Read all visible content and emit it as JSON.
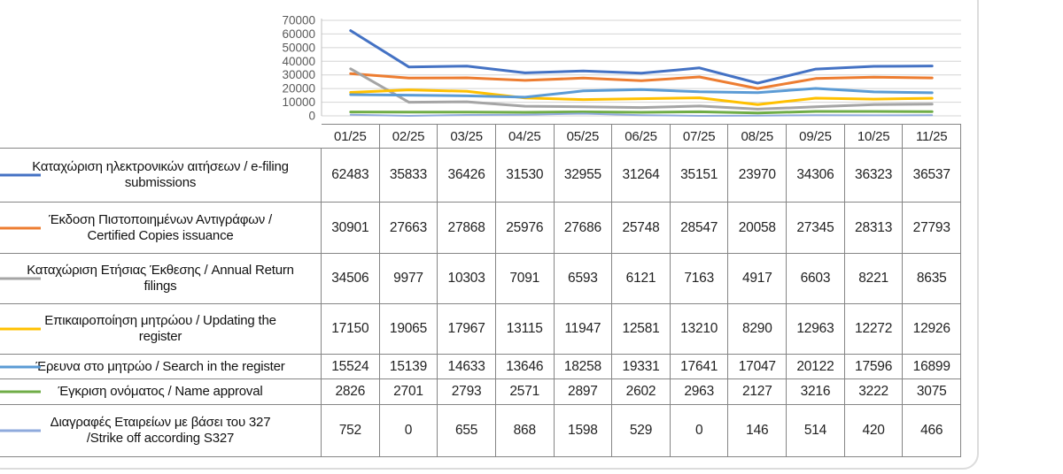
{
  "axis": {
    "yticks": [
      0,
      10000,
      20000,
      30000,
      40000,
      50000,
      60000,
      70000
    ],
    "ytick_labels": [
      "0",
      "10000",
      "20000",
      "30000",
      "40000",
      "50000",
      "60000",
      "70000"
    ]
  },
  "chart_data": {
    "type": "line",
    "title": "",
    "xlabel": "",
    "ylabel": "",
    "ylim": [
      0,
      70000
    ],
    "ytick_step": 10000,
    "grid": true,
    "legend_position": "left-column-of-data-table",
    "categories": [
      "01/25",
      "02/25",
      "03/25",
      "04/25",
      "05/25",
      "06/25",
      "07/25",
      "08/25",
      "09/25",
      "10/25",
      "11/25"
    ],
    "series": [
      {
        "name": "Καταχώριση ηλεκτρονικών αιτήσεων / e-filing submissions",
        "color": "#4472C4",
        "values": [
          62483,
          35833,
          36426,
          31530,
          32955,
          31264,
          35151,
          23970,
          34306,
          36323,
          36537
        ]
      },
      {
        "name": "Έκδοση Πιστοποιημένων Αντιγράφων / Certified Copies issuance",
        "color": "#ED7D31",
        "values": [
          30901,
          27663,
          27868,
          25976,
          27686,
          25748,
          28547,
          20058,
          27345,
          28313,
          27793
        ]
      },
      {
        "name": "Καταχώριση Ετήσιας Έκθεσης / Annual Return filings",
        "color": "#A5A5A5",
        "values": [
          34506,
          9977,
          10303,
          7091,
          6593,
          6121,
          7163,
          4917,
          6603,
          8221,
          8635
        ]
      },
      {
        "name": "Επικαιροποίηση μητρώου / Updating the register",
        "color": "#FFC000",
        "values": [
          17150,
          19065,
          17967,
          13115,
          11947,
          12581,
          13210,
          8290,
          12963,
          12272,
          12926
        ]
      },
      {
        "name": "Έρευνα στο μητρώο / Search in the register",
        "color": "#5B9BD5",
        "values": [
          15524,
          15139,
          14633,
          13646,
          18258,
          19331,
          17641,
          17047,
          20122,
          17596,
          16899
        ]
      },
      {
        "name": "Έγκριση ονόματος / Name approval",
        "color": "#70AD47",
        "values": [
          2826,
          2701,
          2793,
          2571,
          2897,
          2602,
          2963,
          2127,
          3216,
          3222,
          3075
        ]
      },
      {
        "name": "Διαγραφές Εταιρείων με βάσει του 327 / Strike off according S327",
        "color": "#8FAADC",
        "values": [
          752,
          0,
          655,
          868,
          1598,
          529,
          0,
          146,
          514,
          420,
          466
        ]
      }
    ]
  },
  "table": {
    "row_labels_display": [
      "Καταχώριση ηλεκτρονικών αιτήσεων / e-filing\nsubmissions",
      "Έκδοση Πιστοποιημένων Αντιγράφων /\nCertified Copies issuance",
      "Καταχώριση Ετήσιας Έκθεσης / Annual Return\nfilings",
      "Επικαιροποίηση μητρώου / Updating the\nregister",
      "Έρευνα στο μητρώο / Search in the register",
      "Έγκριση ονόματος / Name approval",
      "Διαγραφές Εταιρείων με βάσει του 327\n/Strike off according S327"
    ]
  },
  "colors": {
    "grid_line": "#d4d4d4",
    "axis_line": "#bfbfbf",
    "table_border": "#858585",
    "frame_border": "#dcdcdc",
    "tick_text": "#595959"
  }
}
